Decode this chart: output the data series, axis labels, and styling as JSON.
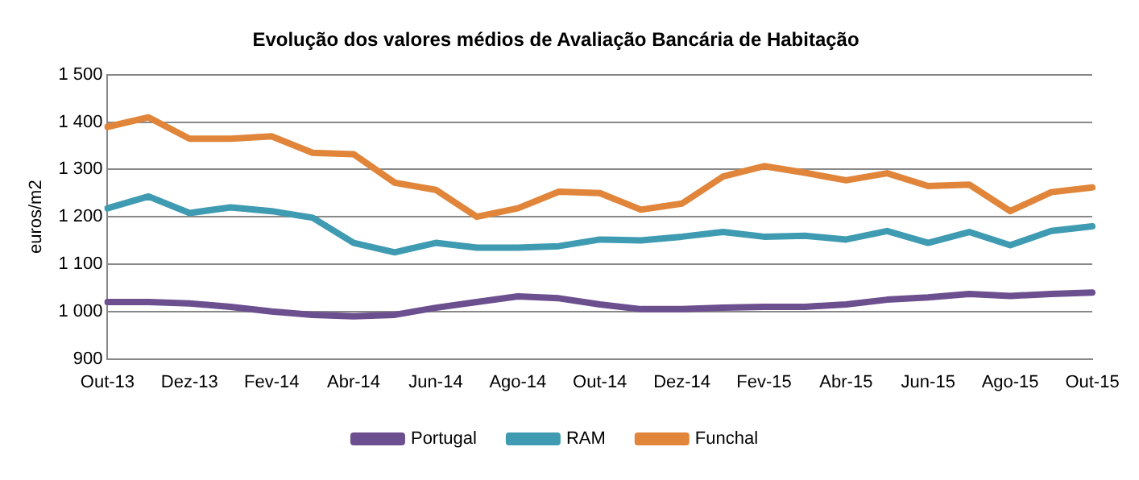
{
  "chart_data": {
    "type": "line",
    "title": "Evolução dos valores médios de Avaliação Bancária de Habitação",
    "ylabel": "euros/m2",
    "categories": [
      "Out-13",
      null,
      "Dez-13",
      null,
      "Fev-14",
      null,
      "Abr-14",
      null,
      "Jun-14",
      null,
      "Ago-14",
      null,
      "Out-14",
      null,
      "Dez-14",
      null,
      "Fev-15",
      null,
      "Abr-15",
      null,
      "Jun-15",
      null,
      "Ago-15",
      null,
      "Out-15"
    ],
    "series": [
      {
        "name": "Portugal",
        "color": "#6b4f8f",
        "values": [
          1020,
          1020,
          1017,
          1010,
          1000,
          993,
          990,
          993,
          1008,
          1020,
          1032,
          1028,
          1015,
          1005,
          1005,
          1008,
          1010,
          1010,
          1015,
          1025,
          1030,
          1037,
          1033,
          1037,
          1040
        ]
      },
      {
        "name": "RAM",
        "color": "#3f9bb1",
        "values": [
          1218,
          1243,
          1208,
          1220,
          1212,
          1198,
          1145,
          1125,
          1145,
          1135,
          1135,
          1138,
          1152,
          1150,
          1158,
          1168,
          1158,
          1160,
          1152,
          1170,
          1145,
          1168,
          1140,
          1170,
          1180
        ]
      },
      {
        "name": "Funchal",
        "color": "#e0853a",
        "values": [
          1390,
          1410,
          1365,
          1365,
          1370,
          1335,
          1332,
          1272,
          1257,
          1200,
          1218,
          1253,
          1250,
          1215,
          1228,
          1285,
          1307,
          1293,
          1277,
          1292,
          1265,
          1268,
          1212,
          1252,
          1262
        ]
      }
    ],
    "ylim": [
      900,
      1500
    ],
    "yticks": [
      900,
      1000,
      1100,
      1200,
      1300,
      1400,
      1500
    ],
    "grid": "y",
    "legend": "bottom",
    "marker": "none",
    "line_style": "solid"
  }
}
